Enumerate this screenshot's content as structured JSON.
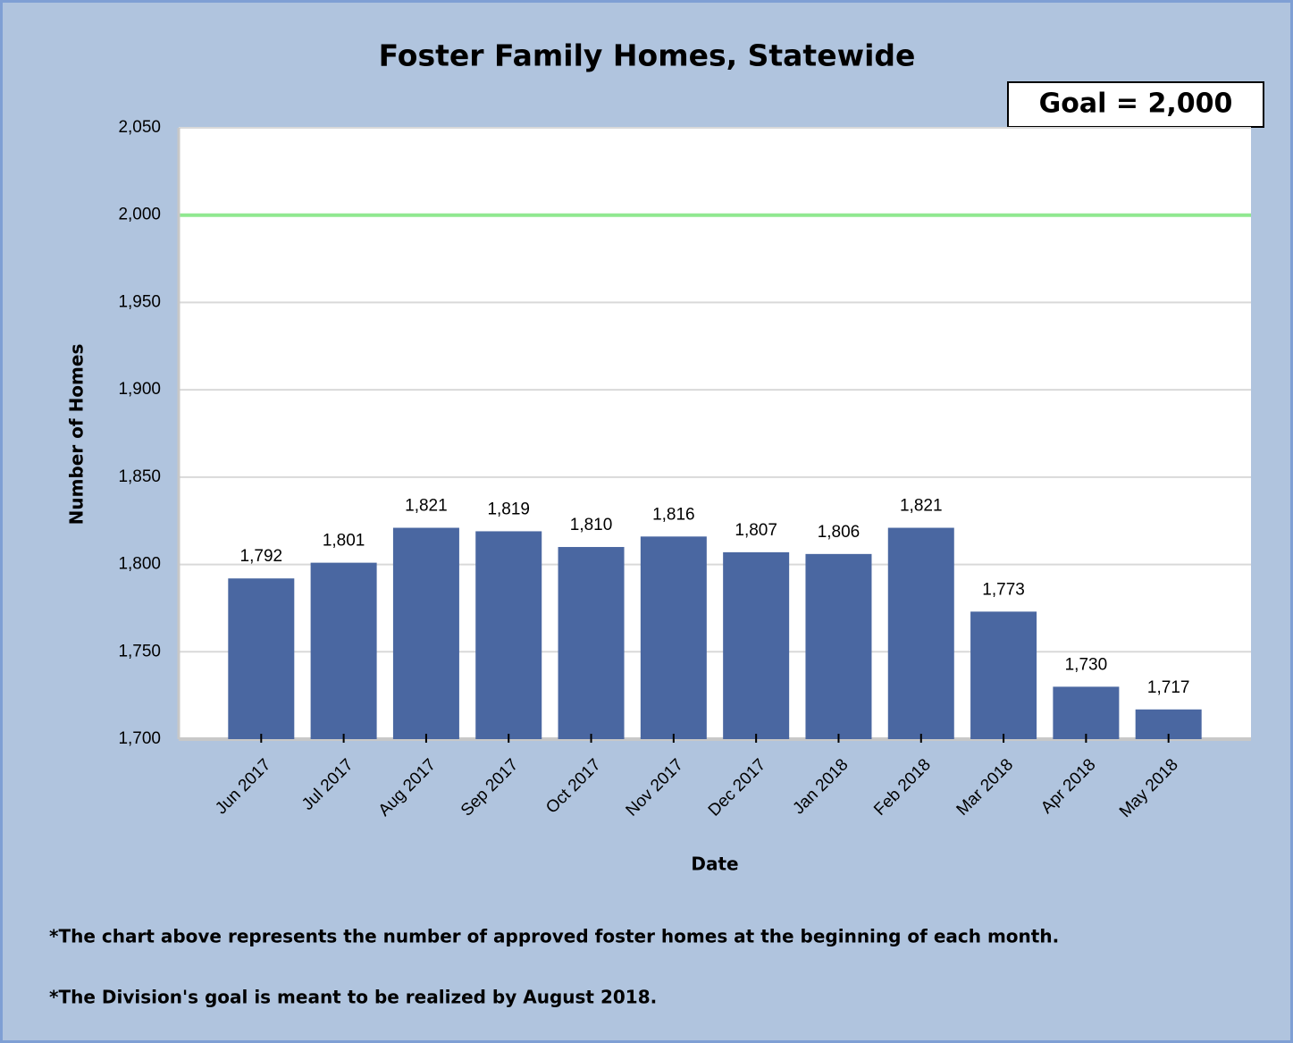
{
  "chart_data": {
    "type": "bar",
    "title": "Foster Family Homes, Statewide",
    "goal": {
      "value": 2000,
      "label": "Goal = 2,000",
      "color": "#90e890"
    },
    "x_label": "Date",
    "y_label": "Number of Homes",
    "categories": [
      "Jun 2017",
      "Jul 2017",
      "Aug 2017",
      "Sep 2017",
      "Oct 2017",
      "Nov 2017",
      "Dec 2017",
      "Jan 2018",
      "Feb 2018",
      "Mar 2018",
      "Apr 2018",
      "May 2018"
    ],
    "values": [
      1792,
      1801,
      1821,
      1819,
      1810,
      1816,
      1807,
      1806,
      1821,
      1773,
      1730,
      1717
    ],
    "value_labels": [
      "1,792",
      "1,801",
      "1,821",
      "1,819",
      "1,810",
      "1,816",
      "1,807",
      "1,806",
      "1,821",
      "1,773",
      "1,730",
      "1,717"
    ],
    "color": "#4a67a1",
    "ylim": [
      1700,
      2050
    ],
    "yticks": [
      {
        "value": 1700,
        "label": "1,700"
      },
      {
        "value": 1750,
        "label": "1,750"
      },
      {
        "value": 1800,
        "label": "1,800"
      },
      {
        "value": 1850,
        "label": "1,850"
      },
      {
        "value": 1900,
        "label": "1,900"
      },
      {
        "value": 1950,
        "label": "1,950"
      },
      {
        "value": 2000,
        "label": "2,000"
      },
      {
        "value": 2050,
        "label": "2,050"
      }
    ],
    "grid": true,
    "notes": [
      "*The chart above represents the number of approved foster homes at the beginning of each month.",
      "*The Division's goal is meant to be realized by August 2018."
    ]
  }
}
